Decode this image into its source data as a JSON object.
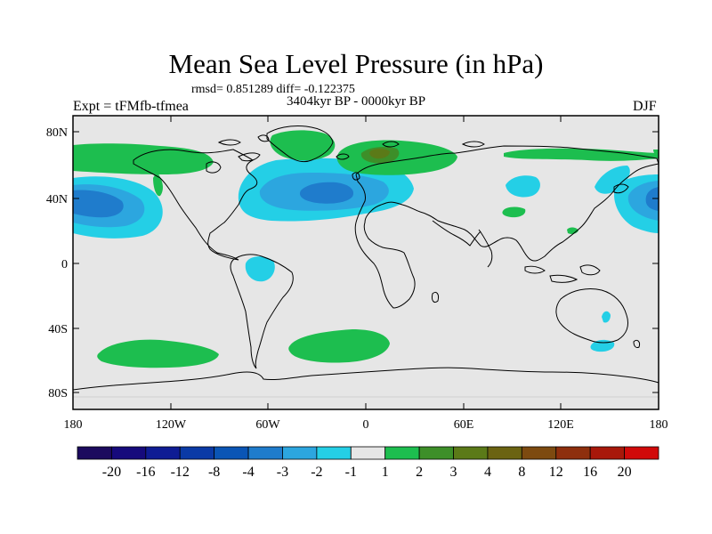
{
  "title": "Mean Sea Level Pressure (in hPa)",
  "stats": "rmsd= 0.851289 diff= -0.122375",
  "subtitle": "3404kyr BP - 0000kyr BP",
  "left_label": "Expt = tFMfb-tfmea",
  "right_label": "DJF",
  "map": {
    "lat_ticks": [
      "80N",
      "40N",
      "0",
      "40S",
      "80S"
    ],
    "lon_ticks": [
      "180",
      "120W",
      "60W",
      "0",
      "60E",
      "120E",
      "180"
    ]
  },
  "colorbar": {
    "colors": [
      "#1c0a5e",
      "#160a7c",
      "#0f1c94",
      "#0a3aa6",
      "#0a55b5",
      "#1f7ccc",
      "#2ca6df",
      "#24cfe6",
      "#e6e6e6",
      "#1dbe4f",
      "#3d8f29",
      "#5b7a18",
      "#6b6312",
      "#7d4a10",
      "#8e2f0d",
      "#a8180a",
      "#d10909"
    ],
    "labels": [
      "-20",
      "-16",
      "-12",
      "-8",
      "-4",
      "-3",
      "-2",
      "-1",
      "1",
      "2",
      "3",
      "4",
      "8",
      "12",
      "16",
      "20"
    ]
  }
}
